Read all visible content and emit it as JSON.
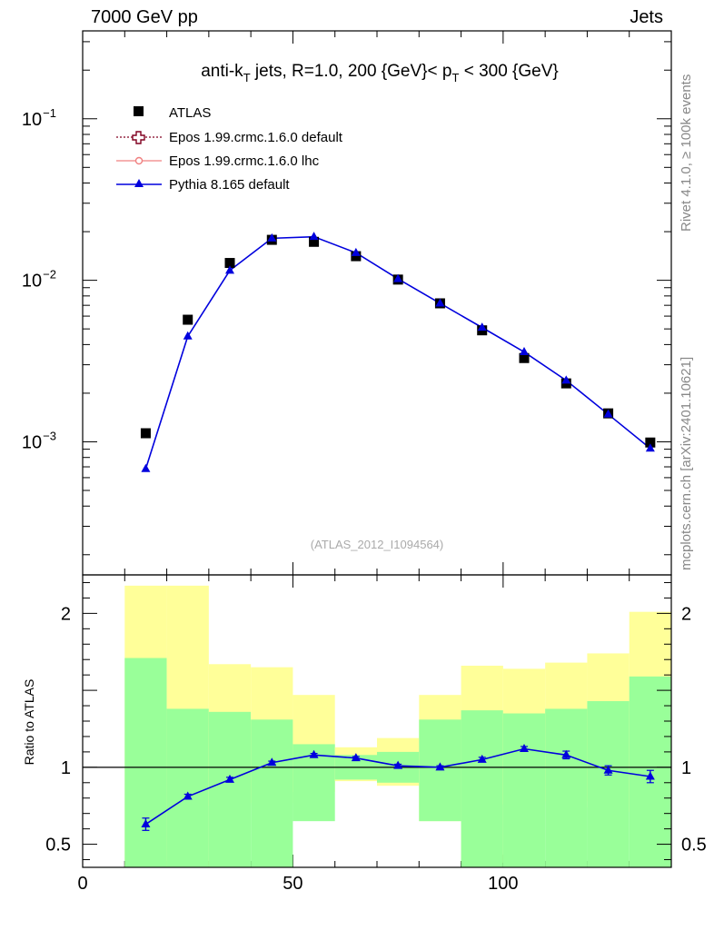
{
  "header": {
    "left": "7000 GeV pp",
    "right": "Jets"
  },
  "side": {
    "rivet": "Rivet 4.1.0, ≥ 100k events",
    "mcplots": "mcplots.cern.ch [arXiv:2401.10621]"
  },
  "colors": {
    "atlas": "#000000",
    "epos_default": "#800020",
    "epos_lhc": "#f08080",
    "pythia": "#0000dd",
    "band_inner": "#99ff99",
    "band_outer": "#ffff99"
  },
  "chart_data": [
    {
      "type": "scatter",
      "panel": "main",
      "title": "anti-k_T jets, R=1.0, 200 {GeV}< p_T < 300 {GeV}",
      "title_parts": {
        "p1": "anti-k",
        "sub1": "T",
        "p2": " jets, R=1.0, 200 {GeV}< p",
        "sub2": "T",
        "p3": " < 300 {GeV}"
      },
      "watermark": "(ATLAS_2012_I1094564)",
      "xlim": [
        0,
        140
      ],
      "ylim": [
        0.00015,
        0.35
      ],
      "yscale": "log",
      "yticks": [
        {
          "value": 0.001,
          "label": "10",
          "exp": "−3"
        },
        {
          "value": 0.01,
          "label": "10",
          "exp": "−2"
        },
        {
          "value": 0.1,
          "label": "10",
          "exp": "−1"
        }
      ],
      "legend": [
        {
          "label": "ATLAS"
        },
        {
          "label": "Epos 1.99.crmc.1.6.0 default"
        },
        {
          "label": "Epos 1.99.crmc.1.6.0 lhc"
        },
        {
          "label": "Pythia 8.165 default"
        }
      ],
      "x": [
        15,
        25,
        35,
        45,
        55,
        65,
        75,
        85,
        95,
        105,
        115,
        125,
        135
      ],
      "series": [
        {
          "name": "ATLAS",
          "values": [
            0.00113,
            0.0057,
            0.0128,
            0.0178,
            0.0173,
            0.0141,
            0.0101,
            0.0072,
            0.0049,
            0.0033,
            0.0023,
            0.0015,
            0.00099
          ]
        },
        {
          "name": "Pythia 8.165 default",
          "values": [
            0.00068,
            0.0045,
            0.0115,
            0.0182,
            0.0186,
            0.0148,
            0.0102,
            0.0072,
            0.0051,
            0.0036,
            0.0024,
            0.00148,
            0.00091
          ]
        }
      ]
    },
    {
      "type": "line",
      "panel": "ratio",
      "ylabel": "Ratio to ATLAS",
      "xlim": [
        0,
        140
      ],
      "ylim": [
        0.35,
        2.25
      ],
      "xticks": [
        {
          "value": 0,
          "label": "0"
        },
        {
          "value": 50,
          "label": "50"
        },
        {
          "value": 100,
          "label": "100"
        }
      ],
      "yticks": [
        {
          "value": 0.5,
          "label": "0.5"
        },
        {
          "value": 1,
          "label": "1"
        },
        {
          "value": 2,
          "label": "2"
        }
      ],
      "bands": {
        "edges": [
          10,
          20,
          30,
          40,
          50,
          60,
          70,
          80,
          90,
          100,
          110,
          120,
          130,
          140
        ],
        "inner_low": [
          0.35,
          0.35,
          0.35,
          0.35,
          0.65,
          0.92,
          0.9,
          0.65,
          0.35,
          0.35,
          0.35,
          0.35,
          0.35
        ],
        "inner_high": [
          1.71,
          1.38,
          1.36,
          1.31,
          1.15,
          1.08,
          1.1,
          1.31,
          1.37,
          1.35,
          1.38,
          1.43,
          1.59
        ],
        "outer_low": [
          0.35,
          0.35,
          0.75,
          0.77,
          0.84,
          0.91,
          0.88,
          0.65,
          0.38,
          0.76,
          0.78,
          0.74,
          0.71
        ],
        "outer_high": [
          2.18,
          2.18,
          1.67,
          1.65,
          1.47,
          1.13,
          1.19,
          1.47,
          1.66,
          1.64,
          1.68,
          1.74,
          2.01
        ]
      },
      "x": [
        15,
        25,
        35,
        45,
        55,
        65,
        75,
        85,
        95,
        105,
        115,
        125,
        135
      ],
      "series": [
        {
          "name": "Pythia 8.165 default",
          "values": [
            0.63,
            0.81,
            0.92,
            1.03,
            1.08,
            1.06,
            1.01,
            1.0,
            1.05,
            1.12,
            1.08,
            0.98,
            0.94
          ],
          "errors": [
            0.04,
            0.015,
            0.015,
            0.01,
            0.01,
            0.01,
            0.01,
            0.01,
            0.015,
            0.015,
            0.025,
            0.03,
            0.04
          ]
        }
      ]
    }
  ]
}
